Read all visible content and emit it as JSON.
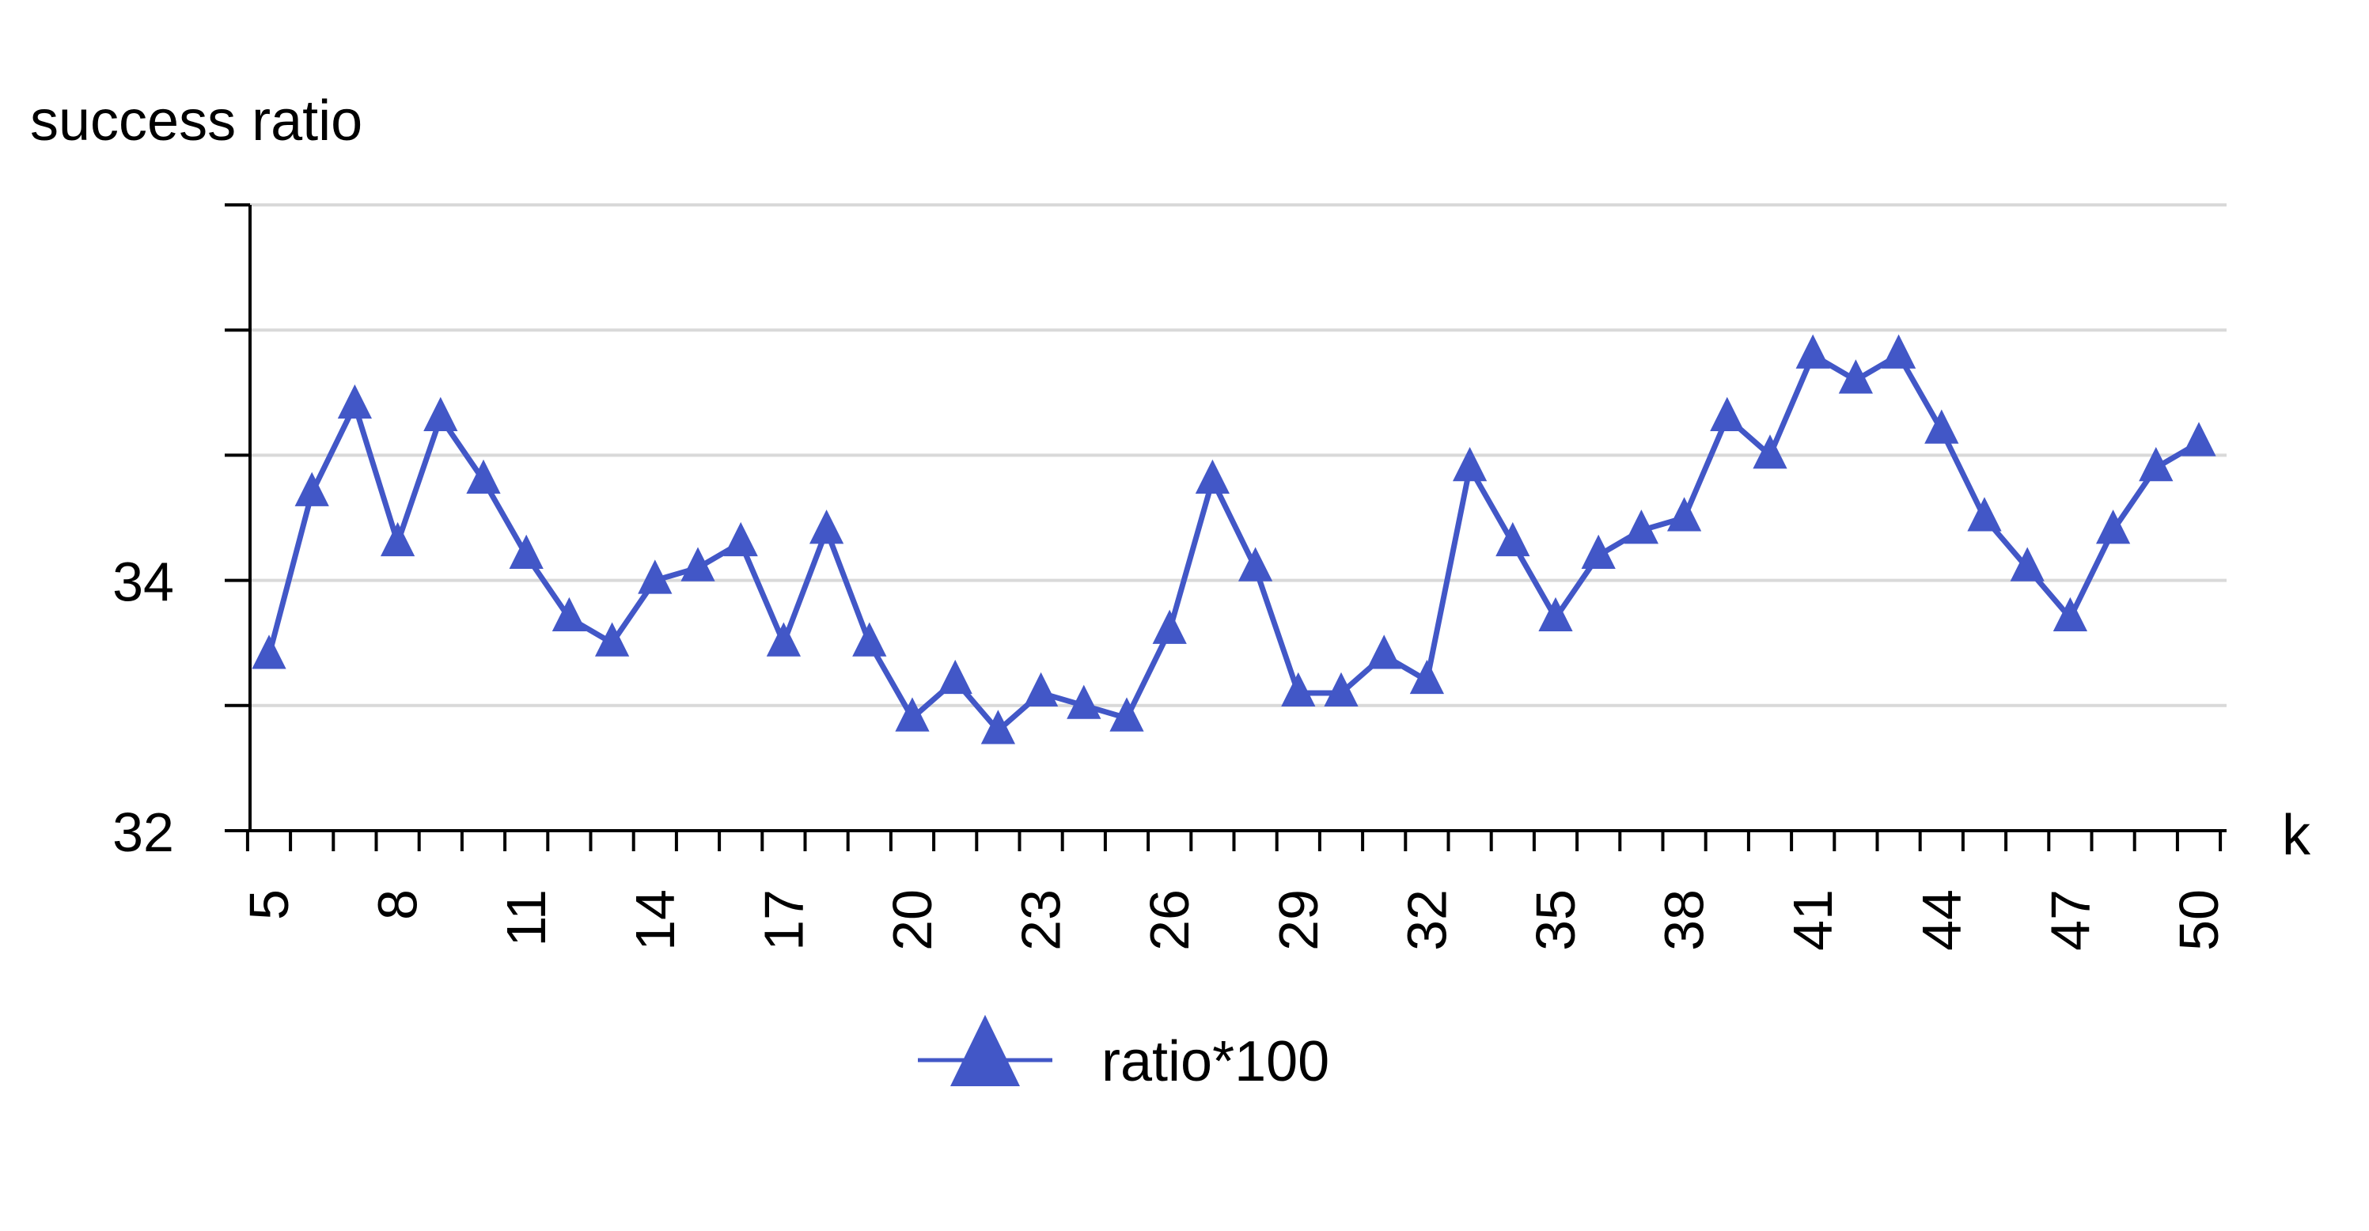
{
  "chart_data": {
    "type": "line",
    "title": "",
    "ylabel": "success ratio",
    "xlabel": "k",
    "ylim": [
      32,
      37
    ],
    "yticks": [
      32,
      33,
      34,
      35,
      36,
      37
    ],
    "ytick_labels": [
      "32",
      "",
      "34",
      "",
      "",
      ""
    ],
    "x": [
      5,
      6,
      7,
      8,
      9,
      10,
      11,
      12,
      13,
      14,
      15,
      16,
      17,
      18,
      19,
      20,
      21,
      22,
      23,
      24,
      25,
      26,
      27,
      28,
      29,
      30,
      31,
      32,
      33,
      34,
      35,
      36,
      37,
      38,
      39,
      40,
      41,
      42,
      43,
      44,
      45,
      46,
      47,
      48,
      49,
      50
    ],
    "xtick_labels": [
      "5",
      "8",
      "11",
      "14",
      "17",
      "20",
      "23",
      "26",
      "29",
      "32",
      "35",
      "38",
      "41",
      "44",
      "47",
      "50"
    ],
    "xtick_label_values": [
      5,
      8,
      11,
      14,
      17,
      20,
      23,
      26,
      29,
      32,
      35,
      38,
      41,
      44,
      47,
      50
    ],
    "grid": true,
    "legend_position": "bottom-center",
    "series": [
      {
        "name": "ratio*100",
        "color": "#4257C7",
        "marker": "triangle",
        "values": [
          33.4,
          34.7,
          35.4,
          34.3,
          35.3,
          34.8,
          34.2,
          33.7,
          33.5,
          34.0,
          34.1,
          34.3,
          33.5,
          34.4,
          33.5,
          32.9,
          33.2,
          32.8,
          33.1,
          33.0,
          32.9,
          33.6,
          34.8,
          34.1,
          33.1,
          33.1,
          33.4,
          33.2,
          34.9,
          34.3,
          33.7,
          34.2,
          34.4,
          34.5,
          35.3,
          35.0,
          35.8,
          35.6,
          35.8,
          35.2,
          34.5,
          34.1,
          33.7,
          34.4,
          34.9,
          35.1
        ]
      }
    ]
  }
}
